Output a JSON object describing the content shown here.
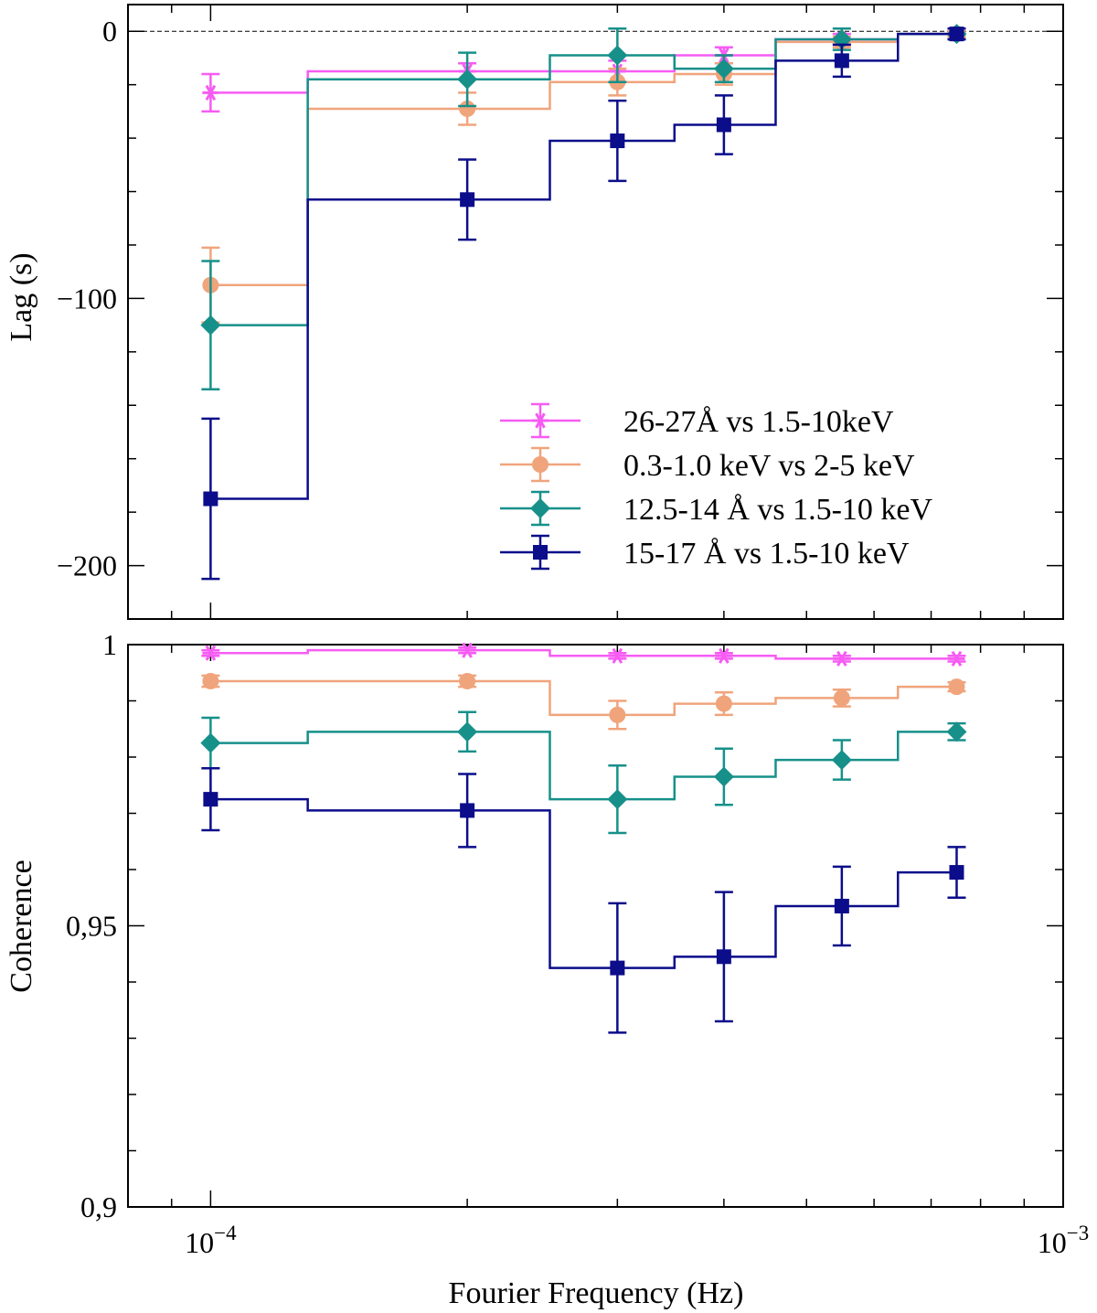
{
  "chart_data": [
    {
      "type": "line",
      "subtype": "step-with-errorbars",
      "panel": "top",
      "ylabel": "Lag (s)",
      "xlabel": "",
      "xscale": "log",
      "xlim": [
        8e-05,
        0.001
      ],
      "ylim": [
        -220,
        10
      ],
      "yticks": [
        0,
        -100,
        -200
      ],
      "ytick_labels": [
        "0",
        "−100",
        "−200"
      ],
      "zero_line": true,
      "legend_position": "lower-right",
      "x": [
        0.0001,
        0.0002,
        0.0003,
        0.0004,
        0.00055,
        0.00075
      ],
      "bin_edges": [
        0.0001,
        0.00013,
        0.00025,
        0.00035,
        0.00046,
        0.00064,
        0.00075
      ],
      "series": [
        {
          "name": "26-27Å vs 1.5-10keV",
          "color": "#f65cf3",
          "marker": "star",
          "values": [
            -23,
            -15,
            -15,
            -9,
            -3,
            -1
          ],
          "errors": [
            7,
            3,
            4,
            3,
            2,
            1
          ]
        },
        {
          "name": "0.3-1.0 keV vs 2-5 keV",
          "color": "#f0a47c",
          "marker": "circle",
          "values": [
            -95,
            -29,
            -19,
            -16,
            -4,
            -1
          ],
          "errors": [
            14,
            6,
            5,
            4,
            2,
            1
          ]
        },
        {
          "name": "12.5-14 Å vs 1.5-10 keV",
          "color": "#17908a",
          "marker": "diamond",
          "values": [
            -110,
            -18,
            -9,
            -14,
            -3,
            -1
          ],
          "errors": [
            24,
            10,
            10,
            5,
            4,
            2
          ]
        },
        {
          "name": "15-17 Å vs 1.5-10 keV",
          "color": "#0b0d8a",
          "marker": "square",
          "values": [
            -175,
            -63,
            -41,
            -35,
            -11,
            -1
          ],
          "errors": [
            30,
            15,
            15,
            11,
            6,
            2
          ]
        }
      ]
    },
    {
      "type": "line",
      "subtype": "step-with-errorbars",
      "panel": "bottom",
      "ylabel": "Coherence",
      "xlabel": "Fourier Frequency (Hz)",
      "xscale": "log",
      "xlim": [
        8e-05,
        0.001
      ],
      "xtick_labels": [
        {
          "base": "10",
          "exp": "−4"
        },
        {
          "base": "10",
          "exp": "−3"
        }
      ],
      "ylim": [
        0.9,
        1.0
      ],
      "yticks": [
        1.0,
        0.95,
        0.9
      ],
      "ytick_labels": [
        "1",
        "0,95",
        "0,9"
      ],
      "x": [
        0.0001,
        0.0002,
        0.0003,
        0.0004,
        0.00055,
        0.00075
      ],
      "bin_edges": [
        0.0001,
        0.00013,
        0.00025,
        0.00035,
        0.00046,
        0.00064,
        0.00075
      ],
      "series": [
        {
          "name": "26-27Å vs 1.5-10keV",
          "color": "#f65cf3",
          "marker": "star",
          "values": [
            0.9985,
            0.999,
            0.998,
            0.998,
            0.9975,
            0.9975
          ],
          "errors": [
            0.0005,
            0.0005,
            0.0005,
            0.0005,
            0.0005,
            0.0005
          ]
        },
        {
          "name": "0.3-1.0 keV vs 2-5 keV",
          "color": "#f0a47c",
          "marker": "circle",
          "values": [
            0.9935,
            0.9935,
            0.9875,
            0.9895,
            0.9905,
            0.9925
          ],
          "errors": [
            0.001,
            0.001,
            0.0025,
            0.002,
            0.0015,
            0.0008
          ]
        },
        {
          "name": "12.5-14 Å vs 1.5-10 keV",
          "color": "#17908a",
          "marker": "diamond",
          "values": [
            0.9825,
            0.9845,
            0.9725,
            0.9765,
            0.9795,
            0.9845
          ],
          "errors": [
            0.0045,
            0.0035,
            0.006,
            0.005,
            0.0035,
            0.0015
          ]
        },
        {
          "name": "15-17 Å vs 1.5-10 keV",
          "color": "#0b0d8a",
          "marker": "square",
          "values": [
            0.9725,
            0.9705,
            0.9425,
            0.9445,
            0.9535,
            0.9595
          ],
          "errors": [
            0.0055,
            0.0065,
            0.0115,
            0.0115,
            0.007,
            0.0045
          ]
        }
      ]
    }
  ]
}
